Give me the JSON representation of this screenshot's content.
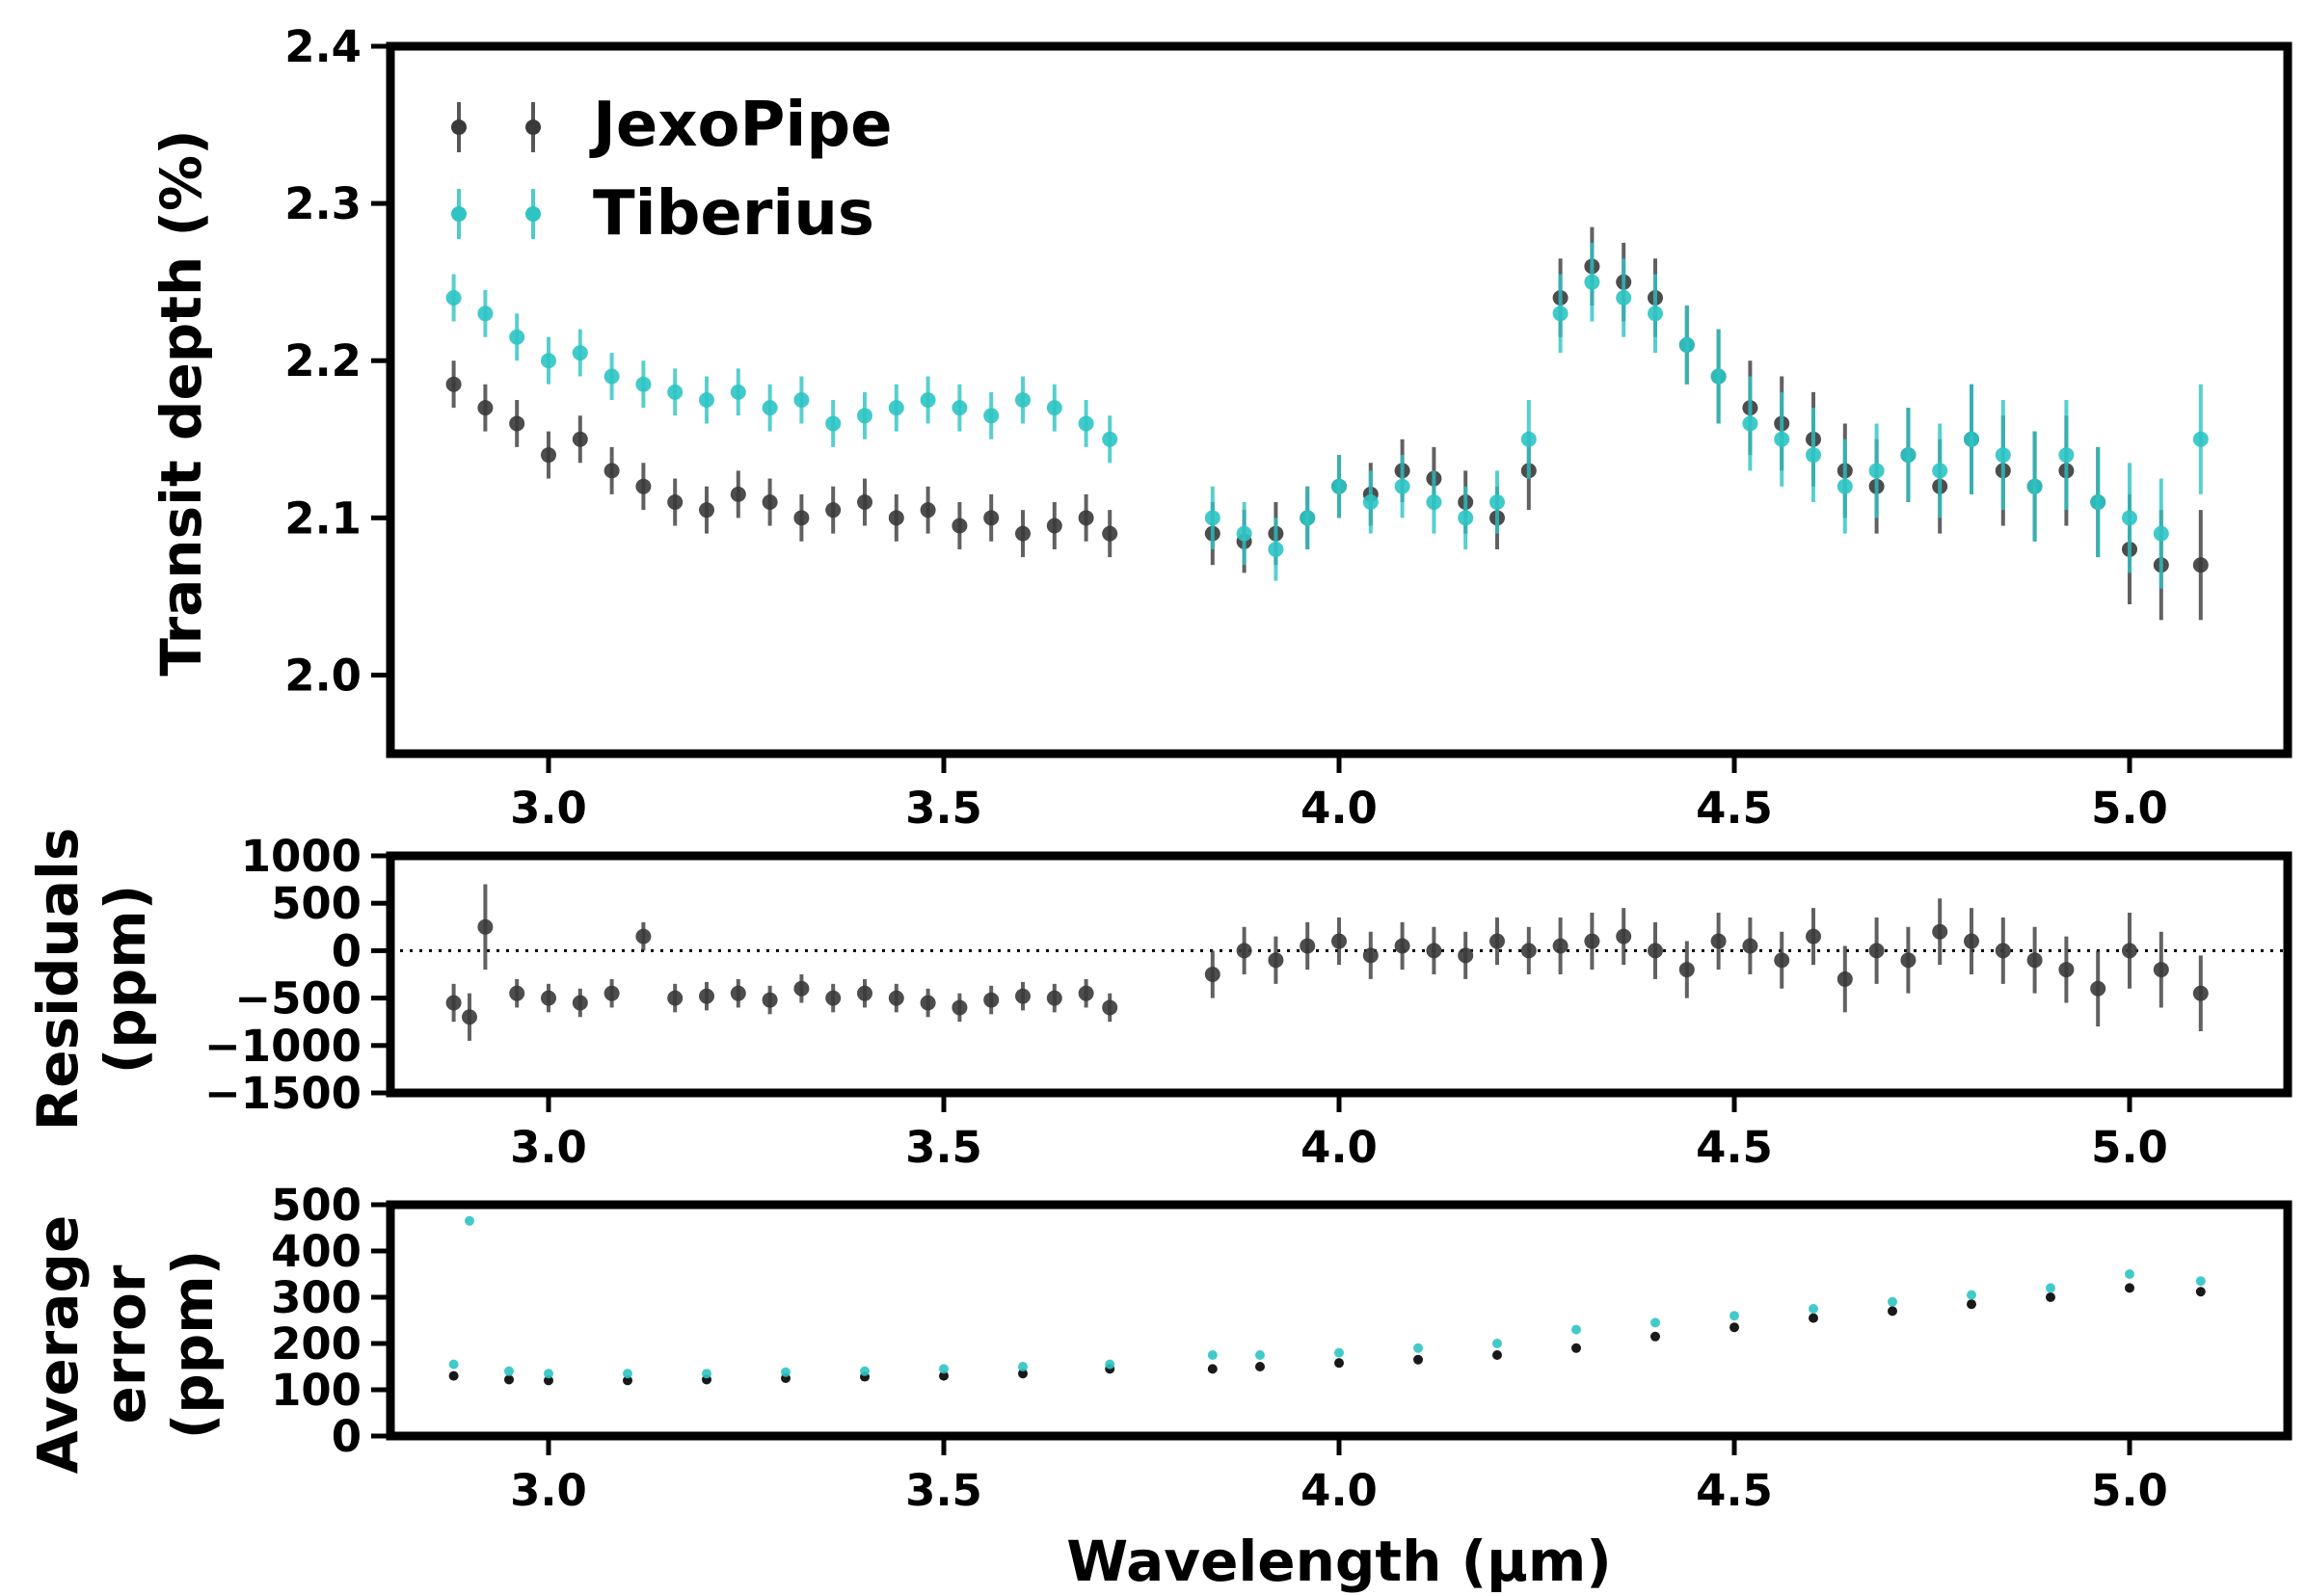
{
  "chart_data": [
    {
      "type": "scatter",
      "panel": "transit-depth",
      "ylabel": "Transit depth (%)",
      "xlabel": "",
      "xlim": [
        2.8,
        5.2
      ],
      "ylim": [
        1.95,
        2.4
      ],
      "x_ticks": [
        "3.0",
        "3.5",
        "4.0",
        "4.5",
        "5.0"
      ],
      "y_ticks": [
        "2.0",
        "2.1",
        "2.2",
        "2.3",
        "2.4"
      ],
      "legend": {
        "placement": "top-left",
        "entries": [
          "JexoPipe",
          "Tiberius"
        ]
      },
      "errorbars": true,
      "note": "Spectrum sampled from the plotted points: 2.88-3.71 µm and 3.84-5.09 µm",
      "series": [
        {
          "name": "JexoPipe",
          "color": "#3a3a3a",
          "x": [
            2.88,
            2.92,
            2.96,
            3.0,
            3.04,
            3.08,
            3.12,
            3.16,
            3.2,
            3.24,
            3.28,
            3.32,
            3.36,
            3.4,
            3.44,
            3.48,
            3.52,
            3.56,
            3.6,
            3.64,
            3.68,
            3.71,
            3.84,
            3.88,
            3.92,
            3.96,
            4.0,
            4.04,
            4.08,
            4.12,
            4.16,
            4.2,
            4.24,
            4.28,
            4.32,
            4.36,
            4.4,
            4.44,
            4.48,
            4.52,
            4.56,
            4.6,
            4.64,
            4.68,
            4.72,
            4.76,
            4.8,
            4.84,
            4.88,
            4.92,
            4.96,
            5.0,
            5.04,
            5.09
          ],
          "y": [
            2.185,
            2.17,
            2.16,
            2.14,
            2.15,
            2.13,
            2.12,
            2.11,
            2.105,
            2.115,
            2.11,
            2.1,
            2.105,
            2.11,
            2.1,
            2.105,
            2.095,
            2.1,
            2.09,
            2.095,
            2.1,
            2.09,
            2.09,
            2.085,
            2.09,
            2.1,
            2.12,
            2.115,
            2.13,
            2.125,
            2.11,
            2.1,
            2.13,
            2.24,
            2.26,
            2.25,
            2.24,
            2.21,
            2.19,
            2.17,
            2.16,
            2.15,
            2.13,
            2.12,
            2.14,
            2.12,
            2.15,
            2.13,
            2.12,
            2.13,
            2.11,
            2.08,
            2.07,
            2.07
          ],
          "err": [
            0.015,
            0.015,
            0.015,
            0.015,
            0.015,
            0.015,
            0.015,
            0.015,
            0.015,
            0.015,
            0.015,
            0.015,
            0.015,
            0.015,
            0.015,
            0.015,
            0.015,
            0.015,
            0.015,
            0.015,
            0.015,
            0.015,
            0.02,
            0.02,
            0.02,
            0.02,
            0.02,
            0.02,
            0.02,
            0.02,
            0.02,
            0.02,
            0.025,
            0.025,
            0.025,
            0.025,
            0.025,
            0.025,
            0.03,
            0.03,
            0.03,
            0.03,
            0.03,
            0.03,
            0.03,
            0.03,
            0.035,
            0.035,
            0.035,
            0.035,
            0.035,
            0.035,
            0.035,
            0.035
          ]
        },
        {
          "name": "Tiberius",
          "color": "#2ec4c4",
          "x": [
            2.88,
            2.92,
            2.96,
            3.0,
            3.04,
            3.08,
            3.12,
            3.16,
            3.2,
            3.24,
            3.28,
            3.32,
            3.36,
            3.4,
            3.44,
            3.48,
            3.52,
            3.56,
            3.6,
            3.64,
            3.68,
            3.71,
            3.84,
            3.88,
            3.92,
            3.96,
            4.0,
            4.04,
            4.08,
            4.12,
            4.16,
            4.2,
            4.24,
            4.28,
            4.32,
            4.36,
            4.4,
            4.44,
            4.48,
            4.52,
            4.56,
            4.6,
            4.64,
            4.68,
            4.72,
            4.76,
            4.8,
            4.84,
            4.88,
            4.92,
            4.96,
            5.0,
            5.04,
            5.09
          ],
          "y": [
            2.24,
            2.23,
            2.215,
            2.2,
            2.205,
            2.19,
            2.185,
            2.18,
            2.175,
            2.18,
            2.17,
            2.175,
            2.16,
            2.165,
            2.17,
            2.175,
            2.17,
            2.165,
            2.175,
            2.17,
            2.16,
            2.15,
            2.1,
            2.09,
            2.08,
            2.1,
            2.12,
            2.11,
            2.12,
            2.11,
            2.1,
            2.11,
            2.15,
            2.23,
            2.25,
            2.24,
            2.23,
            2.21,
            2.19,
            2.16,
            2.15,
            2.14,
            2.12,
            2.13,
            2.14,
            2.13,
            2.15,
            2.14,
            2.12,
            2.14,
            2.11,
            2.1,
            2.09,
            2.15
          ],
          "err": [
            0.015,
            0.015,
            0.015,
            0.015,
            0.015,
            0.015,
            0.015,
            0.015,
            0.015,
            0.015,
            0.015,
            0.015,
            0.015,
            0.015,
            0.015,
            0.015,
            0.015,
            0.015,
            0.015,
            0.015,
            0.015,
            0.015,
            0.02,
            0.02,
            0.02,
            0.02,
            0.02,
            0.02,
            0.02,
            0.02,
            0.02,
            0.02,
            0.025,
            0.025,
            0.025,
            0.025,
            0.025,
            0.025,
            0.03,
            0.03,
            0.03,
            0.03,
            0.03,
            0.03,
            0.03,
            0.03,
            0.035,
            0.035,
            0.035,
            0.035,
            0.035,
            0.035,
            0.035,
            0.035
          ]
        }
      ]
    },
    {
      "type": "scatter",
      "panel": "residuals",
      "ylabel_lines": [
        "Residuals",
        "(ppm)"
      ],
      "xlim": [
        2.8,
        5.2
      ],
      "ylim": [
        -1500,
        1000
      ],
      "x_ticks": [
        "3.0",
        "3.5",
        "4.0",
        "4.5",
        "5.0"
      ],
      "y_ticks": [
        "1000",
        "500",
        "0",
        "−500",
        "−1000",
        "−1500"
      ],
      "reference_line": {
        "y": 0,
        "style": "dotted"
      },
      "errorbars": true,
      "series": [
        {
          "color": "#3a3a3a",
          "x": [
            2.88,
            2.9,
            2.92,
            2.96,
            3.0,
            3.04,
            3.08,
            3.12,
            3.16,
            3.2,
            3.24,
            3.28,
            3.32,
            3.36,
            3.4,
            3.44,
            3.48,
            3.52,
            3.56,
            3.6,
            3.64,
            3.68,
            3.71,
            3.84,
            3.88,
            3.92,
            3.96,
            4.0,
            4.04,
            4.08,
            4.12,
            4.16,
            4.2,
            4.24,
            4.28,
            4.32,
            4.36,
            4.4,
            4.44,
            4.48,
            4.52,
            4.56,
            4.6,
            4.64,
            4.68,
            4.72,
            4.76,
            4.8,
            4.84,
            4.88,
            4.92,
            4.96,
            5.0,
            5.04,
            5.09
          ],
          "y": [
            -550,
            -700,
            250,
            -450,
            -500,
            -550,
            -450,
            150,
            -500,
            -480,
            -450,
            -520,
            -400,
            -500,
            -450,
            -500,
            -550,
            -600,
            -520,
            -480,
            -500,
            -450,
            -600,
            -250,
            0,
            -100,
            50,
            100,
            -50,
            50,
            0,
            -50,
            100,
            0,
            50,
            100,
            150,
            0,
            -200,
            100,
            50,
            -100,
            150,
            -300,
            0,
            -100,
            200,
            100,
            0,
            -100,
            -200,
            -400,
            0,
            -200,
            -450
          ],
          "err": [
            200,
            250,
            450,
            150,
            150,
            150,
            150,
            150,
            150,
            150,
            150,
            150,
            150,
            150,
            150,
            150,
            150,
            150,
            150,
            150,
            150,
            150,
            150,
            250,
            250,
            250,
            250,
            250,
            250,
            250,
            250,
            250,
            250,
            250,
            300,
            300,
            300,
            300,
            300,
            300,
            300,
            300,
            300,
            350,
            350,
            350,
            350,
            350,
            350,
            350,
            350,
            400,
            400,
            400,
            400
          ]
        }
      ]
    },
    {
      "type": "scatter",
      "panel": "average-error",
      "ylabel_lines": [
        "Average",
        "error",
        "(ppm)"
      ],
      "xlabel": "Wavelength (μm)",
      "xlim": [
        2.8,
        5.2
      ],
      "ylim": [
        0,
        500
      ],
      "x_ticks": [
        "3.0",
        "3.5",
        "4.0",
        "4.5",
        "5.0"
      ],
      "y_ticks": [
        "500",
        "400",
        "300",
        "200",
        "100",
        "0"
      ],
      "series": [
        {
          "color": "#000000",
          "x": [
            2.88,
            2.95,
            3.0,
            3.1,
            3.2,
            3.3,
            3.4,
            3.5,
            3.6,
            3.71,
            3.84,
            3.9,
            4.0,
            4.1,
            4.2,
            4.3,
            4.4,
            4.5,
            4.6,
            4.7,
            4.8,
            4.9,
            5.0,
            5.09
          ],
          "y": [
            130,
            122,
            120,
            120,
            122,
            125,
            128,
            130,
            135,
            145,
            145,
            150,
            158,
            165,
            175,
            190,
            215,
            235,
            255,
            270,
            285,
            300,
            320,
            312
          ]
        },
        {
          "color": "#2ec4c4",
          "x": [
            2.88,
            2.9,
            2.95,
            3.0,
            3.1,
            3.2,
            3.3,
            3.4,
            3.5,
            3.6,
            3.71,
            3.84,
            3.9,
            4.0,
            4.1,
            4.2,
            4.3,
            4.4,
            4.5,
            4.6,
            4.7,
            4.8,
            4.9,
            5.0,
            5.09
          ],
          "y": [
            155,
            465,
            140,
            135,
            135,
            135,
            138,
            140,
            145,
            150,
            155,
            175,
            175,
            180,
            190,
            200,
            230,
            245,
            260,
            275,
            290,
            305,
            320,
            350,
            335
          ]
        }
      ]
    }
  ]
}
